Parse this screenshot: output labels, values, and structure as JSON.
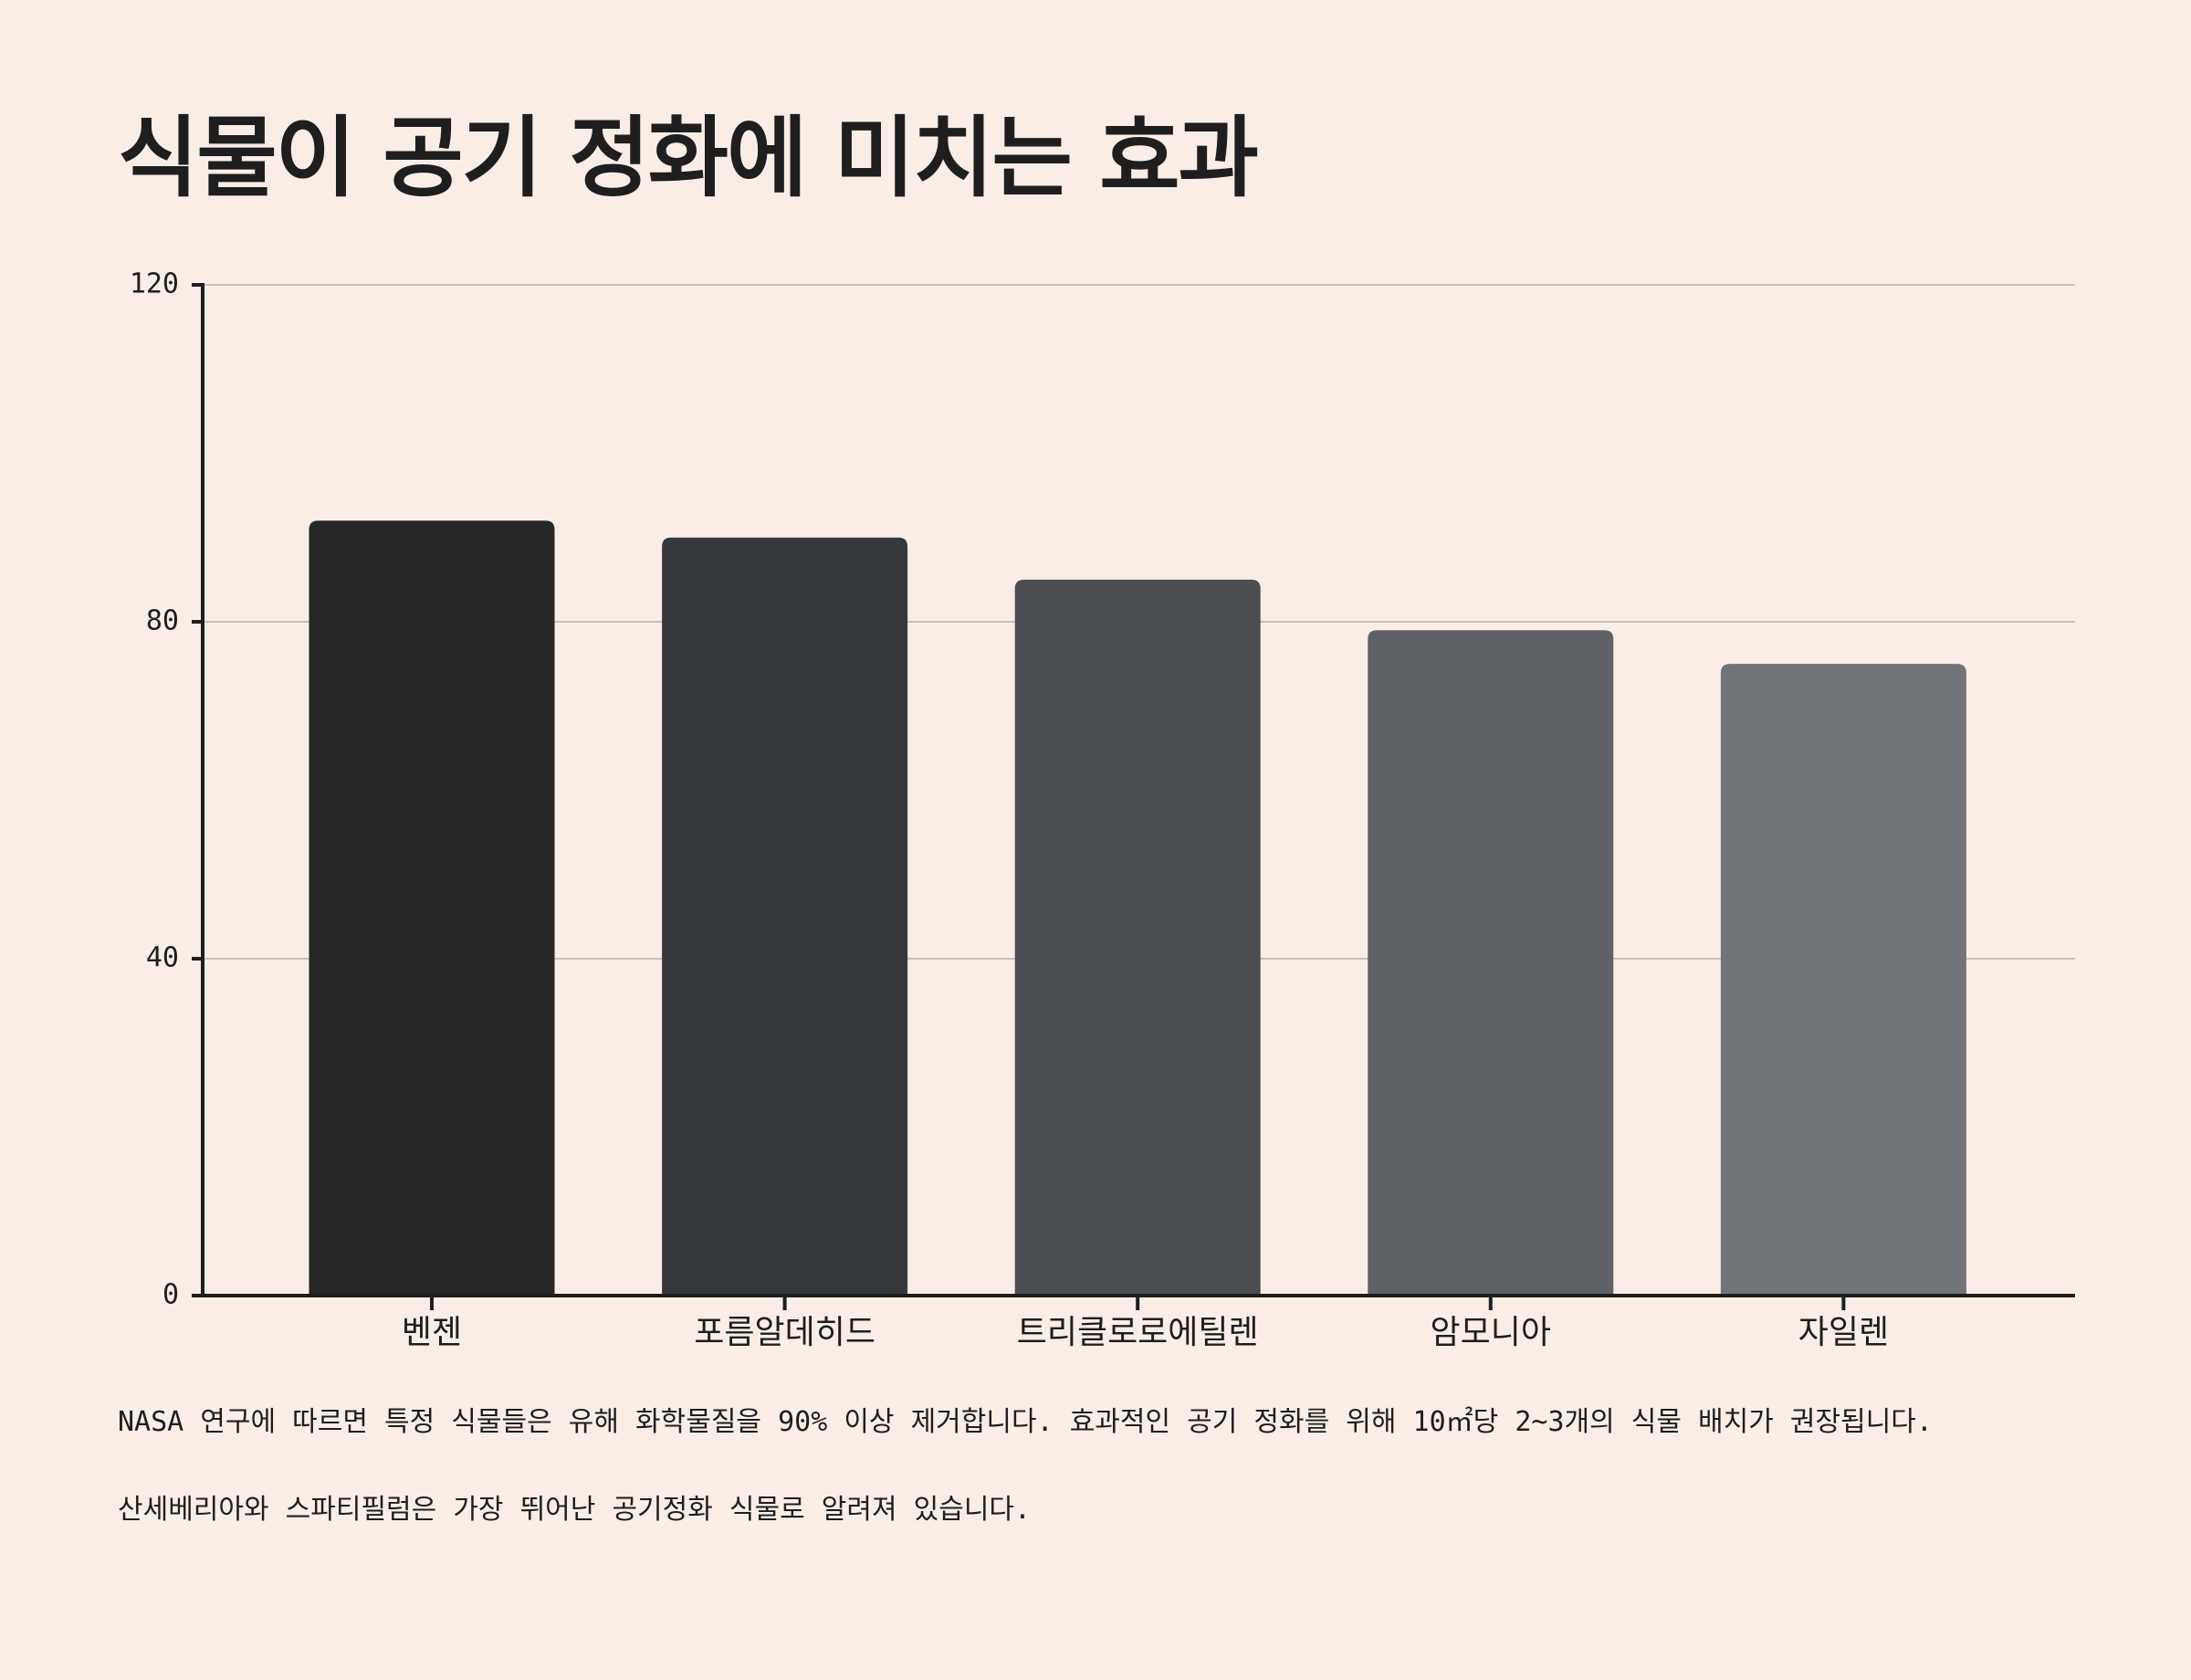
{
  "chart_data": {
    "type": "bar",
    "title": "식물이 공기 정화에 미치는 효과",
    "categories": [
      "벤젠",
      "포름알데히드",
      "트리클로로에틸렌",
      "암모니아",
      "자일렌"
    ],
    "values": [
      92,
      90,
      85,
      79,
      75
    ],
    "colors": [
      "#252627",
      "#36393c",
      "#4b4e53",
      "#5e6166",
      "#717478"
    ],
    "ylim": [
      0,
      120
    ],
    "yticks": [
      0,
      40,
      80,
      120
    ],
    "grid": true,
    "notes": [
      "NASA 연구에 따르면 특정 식물들은 유해 화학물질을 90% 이상 제거합니다. 효과적인 공기 정화를 위해 10㎡당 2~3개의 식물 배치가 권장됩니다.",
      "산세베리아와 스파티필럼은 가장 뛰어난 공기정화 식물로 알려져 있습니다."
    ]
  }
}
